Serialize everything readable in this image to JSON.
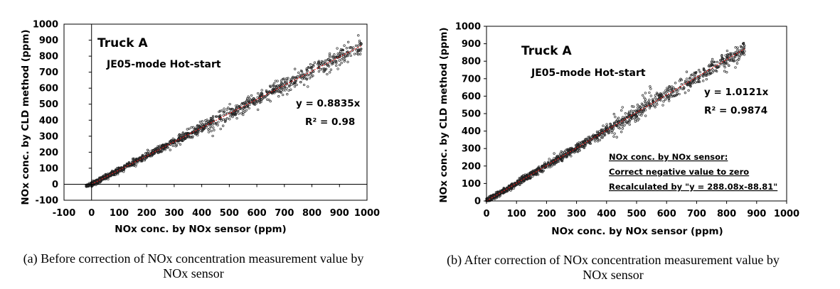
{
  "chart_data": [
    {
      "type": "scatter",
      "title": "Truck A",
      "subtitle": "JE05-mode Hot-start",
      "xlabel": "NOx conc. by NOx sensor (ppm)",
      "ylabel": "NOx conc. by CLD method (ppm)",
      "xlim": [
        -100,
        1000
      ],
      "ylim": [
        -100,
        1000
      ],
      "xticks": [
        "-100",
        "0",
        "100",
        "200",
        "300",
        "400",
        "500",
        "600",
        "700",
        "800",
        "900",
        "1000"
      ],
      "yticks": [
        "-100",
        "0",
        "100",
        "200",
        "300",
        "400",
        "500",
        "600",
        "700",
        "800",
        "900",
        "1000"
      ],
      "trendline": {
        "slope": 0.8835,
        "color": "#e02020"
      },
      "equation": "y = 0.8835x",
      "r2": "R² = 0.98",
      "marker_color": "#222222",
      "grid": false,
      "caption_line1": "(a) Before correction of NOx concentration measurement value by",
      "caption_line2": "NOx sensor"
    },
    {
      "type": "scatter",
      "title": "Truck A",
      "subtitle": "JE05-mode Hot-start",
      "xlabel": "NOx conc. by NOx sensor (ppm)",
      "ylabel": "NOx conc. by CLD method (ppm)",
      "xlim": [
        0,
        1000
      ],
      "ylim": [
        0,
        1000
      ],
      "xticks": [
        "0",
        "100",
        "200",
        "300",
        "400",
        "500",
        "600",
        "700",
        "800",
        "900",
        "1000"
      ],
      "yticks": [
        "0",
        "100",
        "200",
        "300",
        "400",
        "500",
        "600",
        "700",
        "800",
        "900",
        "1000"
      ],
      "trendline": {
        "slope": 1.0121,
        "color": "#e02020"
      },
      "equation": "y = 1.0121x",
      "r2": "R² = 0.9874",
      "marker_color": "#222222",
      "grid": false,
      "note_lines": [
        "NOx conc. by NOx sensor:",
        "Correct negative value to zero",
        "Recalculated by \"y = 288.08x-88.81\""
      ],
      "caption_line1": "(b) After correction of NOx concentration measurement value by",
      "caption_line2": "NOx sensor"
    }
  ]
}
